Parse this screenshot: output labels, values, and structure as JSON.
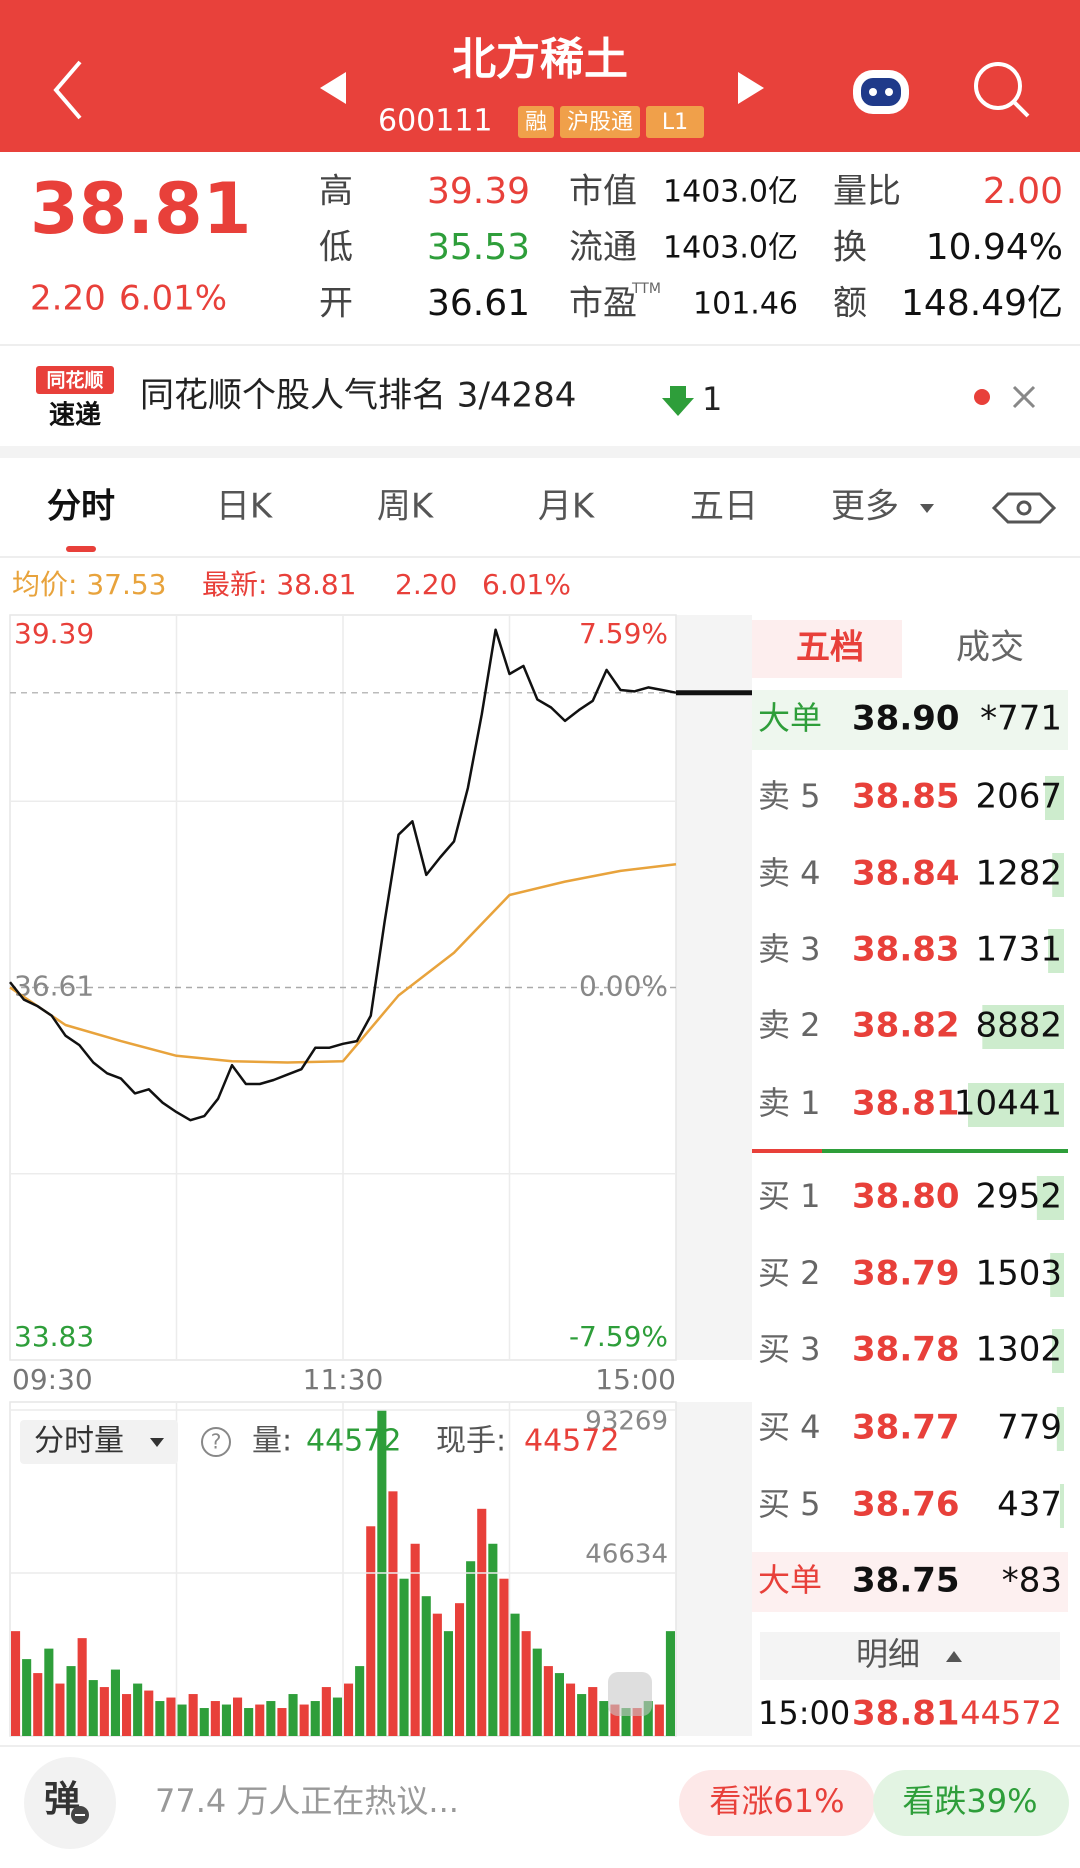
{
  "header": {
    "title": "北方稀土",
    "code": "600111",
    "tags": [
      "融",
      "沪股通",
      "L1"
    ]
  },
  "quote": {
    "price": 38.81,
    "change": "2.20",
    "change_pct": "6.01%",
    "stats": [
      {
        "label": "高",
        "value": "39.39"
      },
      {
        "label": "低",
        "value": "35.53"
      },
      {
        "label": "开",
        "value": "36.61"
      },
      {
        "label": "市值",
        "value": "1403.0亿"
      },
      {
        "label": "流通",
        "value": "1403.0亿"
      },
      {
        "label": "市盈",
        "sup": "TTM",
        "value": "101.46"
      },
      {
        "label": "量比",
        "value": "2.00"
      },
      {
        "label": "换",
        "value": "10.94%"
      },
      {
        "label": "额",
        "value": "148.49亿"
      }
    ]
  },
  "banner": {
    "logo": [
      "同花顺",
      "速递"
    ],
    "text": "同花顺个股人气排名 3/4284",
    "rank_change": "1"
  },
  "tabs": [
    "分时",
    "日K",
    "周K",
    "月K",
    "五日",
    "更多"
  ],
  "chart_info": {
    "avg_label": "均价: 37.53",
    "latest_label": "最新: 38.81",
    "change": "2.20",
    "change_pct": "6.01%"
  },
  "chart_data": [
    {
      "type": "line",
      "x_labels": [
        "09:30",
        "11:30",
        "15:00"
      ],
      "ylim": [
        33.83,
        39.39
      ],
      "yticks": [
        33.83,
        36.61,
        39.39
      ],
      "y2lim": [
        -7.59,
        7.59
      ],
      "y2ticks": [
        {
          "value": -7.59,
          "label": "-7.59%"
        },
        {
          "value": 0,
          "label": "0.00%"
        },
        {
          "value": 7.59,
          "label": "7.59%"
        }
      ],
      "series": [
        {
          "color": "#111111",
          "values": [
            36.65,
            36.52,
            36.47,
            36.4,
            36.25,
            36.18,
            36.05,
            35.97,
            35.93,
            35.82,
            35.85,
            35.75,
            35.68,
            35.62,
            35.65,
            35.78,
            36.03,
            35.89,
            35.89,
            35.92,
            35.96,
            36.0,
            36.16,
            36.16,
            36.19,
            36.21,
            36.4,
            37.1,
            37.75,
            37.85,
            37.45,
            37.58,
            37.7,
            38.1,
            38.65,
            39.28,
            38.95,
            39.01,
            38.76,
            38.7,
            38.6,
            38.68,
            38.75,
            38.98,
            38.83,
            38.82,
            38.85,
            38.83,
            38.81
          ]
        },
        {
          "color": "#e8a33c",
          "values": [
            36.61,
            36.33,
            36.21,
            36.1,
            36.06,
            36.05,
            36.06,
            36.55,
            36.87,
            37.3,
            37.4,
            37.48,
            37.53
          ]
        }
      ]
    },
    {
      "type": "bar",
      "ylim": [
        0,
        93269
      ],
      "yticks": [
        46634,
        93269
      ],
      "colors": [
        "#e8403a",
        "#2e9e3a"
      ],
      "values": [
        30000,
        22000,
        18000,
        25000,
        15000,
        20000,
        28000,
        16000,
        14000,
        19000,
        12000,
        15000,
        13000,
        10000,
        11000,
        9000,
        12000,
        8000,
        10000,
        9000,
        11000,
        8000,
        9000,
        10000,
        8000,
        12000,
        9000,
        10000,
        14000,
        11000,
        15000,
        20000,
        60000,
        93269,
        70000,
        45000,
        55000,
        40000,
        35000,
        30000,
        38000,
        50000,
        65000,
        55000,
        45000,
        35000,
        30000,
        25000,
        20000,
        18000,
        15000,
        12000,
        14000,
        10000,
        9000,
        8000,
        8000,
        10000,
        9000,
        30000
      ]
    }
  ],
  "volume_header": {
    "selector": "分时量",
    "volume_label": "量:",
    "volume": "44572",
    "hand_label": "现手:",
    "hand": "44572"
  },
  "order_book": {
    "tabs": [
      "五档",
      "成交"
    ],
    "big_sell": {
      "label": "大单",
      "price": "38.90",
      "qty": "*771"
    },
    "asks": [
      {
        "label": "卖 5",
        "price": "38.85",
        "qty": 2067
      },
      {
        "label": "卖 4",
        "price": "38.84",
        "qty": 1282
      },
      {
        "label": "卖 3",
        "price": "38.83",
        "qty": 1731
      },
      {
        "label": "卖 2",
        "price": "38.82",
        "qty": 8882
      },
      {
        "label": "卖 1",
        "price": "38.81",
        "qty": 10441
      }
    ],
    "bids": [
      {
        "label": "买 1",
        "price": "38.80",
        "qty": 2952
      },
      {
        "label": "买 2",
        "price": "38.79",
        "qty": 1503
      },
      {
        "label": "买 3",
        "price": "38.78",
        "qty": 1302
      },
      {
        "label": "买 4",
        "price": "38.77",
        "qty": 779
      },
      {
        "label": "买 5",
        "price": "38.76",
        "qty": 437
      }
    ],
    "big_buy": {
      "label": "大单",
      "price": "38.75",
      "qty": "*83"
    },
    "detail": "明细",
    "trade": {
      "time": "15:00",
      "price": "38.81",
      "volume": "44572"
    }
  },
  "bottom": {
    "comment": "弹",
    "discuss": "77.4 万人正在热议...",
    "bull": "看涨61%",
    "bear": "看跌39%"
  }
}
